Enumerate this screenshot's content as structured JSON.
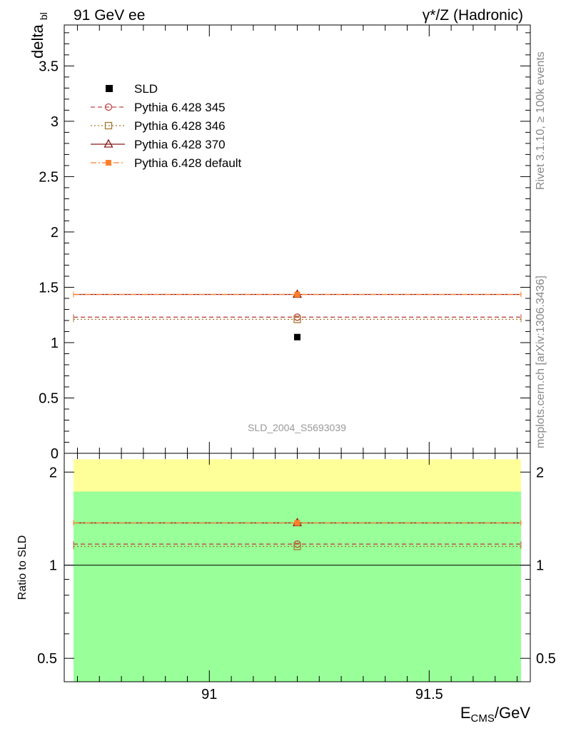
{
  "header": {
    "left": "91 GeV ee",
    "right": "γ*/Z (Hadronic)"
  },
  "side_labels": {
    "rivet": "Rivet 3.1.10, ≥ 100k events",
    "mcplots": "mcplots.cern.ch [arXiv:1306.3436]"
  },
  "chart_data": [
    {
      "type": "line",
      "panel": "main",
      "ylabel": "delta_bl",
      "watermark": "SLD_2004_S5693039",
      "xlim": [
        90.67,
        91.73
      ],
      "ylim": [
        0,
        3.87
      ],
      "yticks_major": [
        "0",
        "0.5",
        "1",
        "1.5",
        "2",
        "2.5",
        "3",
        "3.5"
      ],
      "legend_position": "top-left",
      "data": {
        "name": "SLD",
        "x": 91.2,
        "y": 1.05,
        "color": "#000000"
      },
      "series": [
        {
          "name": "Pythia 6.428 345",
          "y": 1.23,
          "x_range": [
            90.67,
            91.73
          ],
          "color": "#c0454a",
          "dash": "6,4",
          "marker": "circle"
        },
        {
          "name": "Pythia 6.428 346",
          "y": 1.21,
          "x_range": [
            90.67,
            91.73
          ],
          "color": "#a8782e",
          "dash": "2,3",
          "marker": "square"
        },
        {
          "name": "Pythia 6.428 370",
          "y": 1.435,
          "x_range": [
            90.67,
            91.73
          ],
          "color": "#8b1a1a",
          "dash": "",
          "marker": "triangle"
        },
        {
          "name": "Pythia 6.428 default",
          "y": 1.435,
          "x_range": [
            90.67,
            91.73
          ],
          "color": "#ff7f2a",
          "dash": "8,3,2,3",
          "marker": "filled-square"
        }
      ]
    },
    {
      "type": "line",
      "panel": "ratio",
      "ylabel": "Ratio to SLD",
      "xlabel": "E_CMS/GeV",
      "xlabel_main": "E",
      "xlabel_sub": "CMS",
      "xlabel_tail": "/GeV",
      "xlim": [
        90.67,
        91.73
      ],
      "ylim": [
        0.42,
        2.3
      ],
      "log_scale_y": true,
      "xticks_major": [
        "91",
        "91.5"
      ],
      "yticks_major": [
        "0.5",
        "1",
        "2"
      ],
      "bands": [
        {
          "name": "yellow",
          "from": 0.42,
          "to": 2.2,
          "color": "#ffff99"
        },
        {
          "name": "green",
          "from": 0.42,
          "to": 1.73,
          "color": "#99ff99"
        }
      ],
      "reference_line": 1.0,
      "series": [
        {
          "name": "Pythia 6.428 345",
          "y": 1.17,
          "color": "#c0454a",
          "dash": "6,4",
          "marker": "circle"
        },
        {
          "name": "Pythia 6.428 346",
          "y": 1.15,
          "color": "#a8782e",
          "dash": "2,3",
          "marker": "square"
        },
        {
          "name": "Pythia 6.428 370",
          "y": 1.37,
          "color": "#8b1a1a",
          "dash": "",
          "marker": "triangle"
        },
        {
          "name": "Pythia 6.428 default",
          "y": 1.37,
          "color": "#ff7f2a",
          "dash": "8,3,2,3",
          "marker": "filled-square"
        }
      ]
    }
  ]
}
